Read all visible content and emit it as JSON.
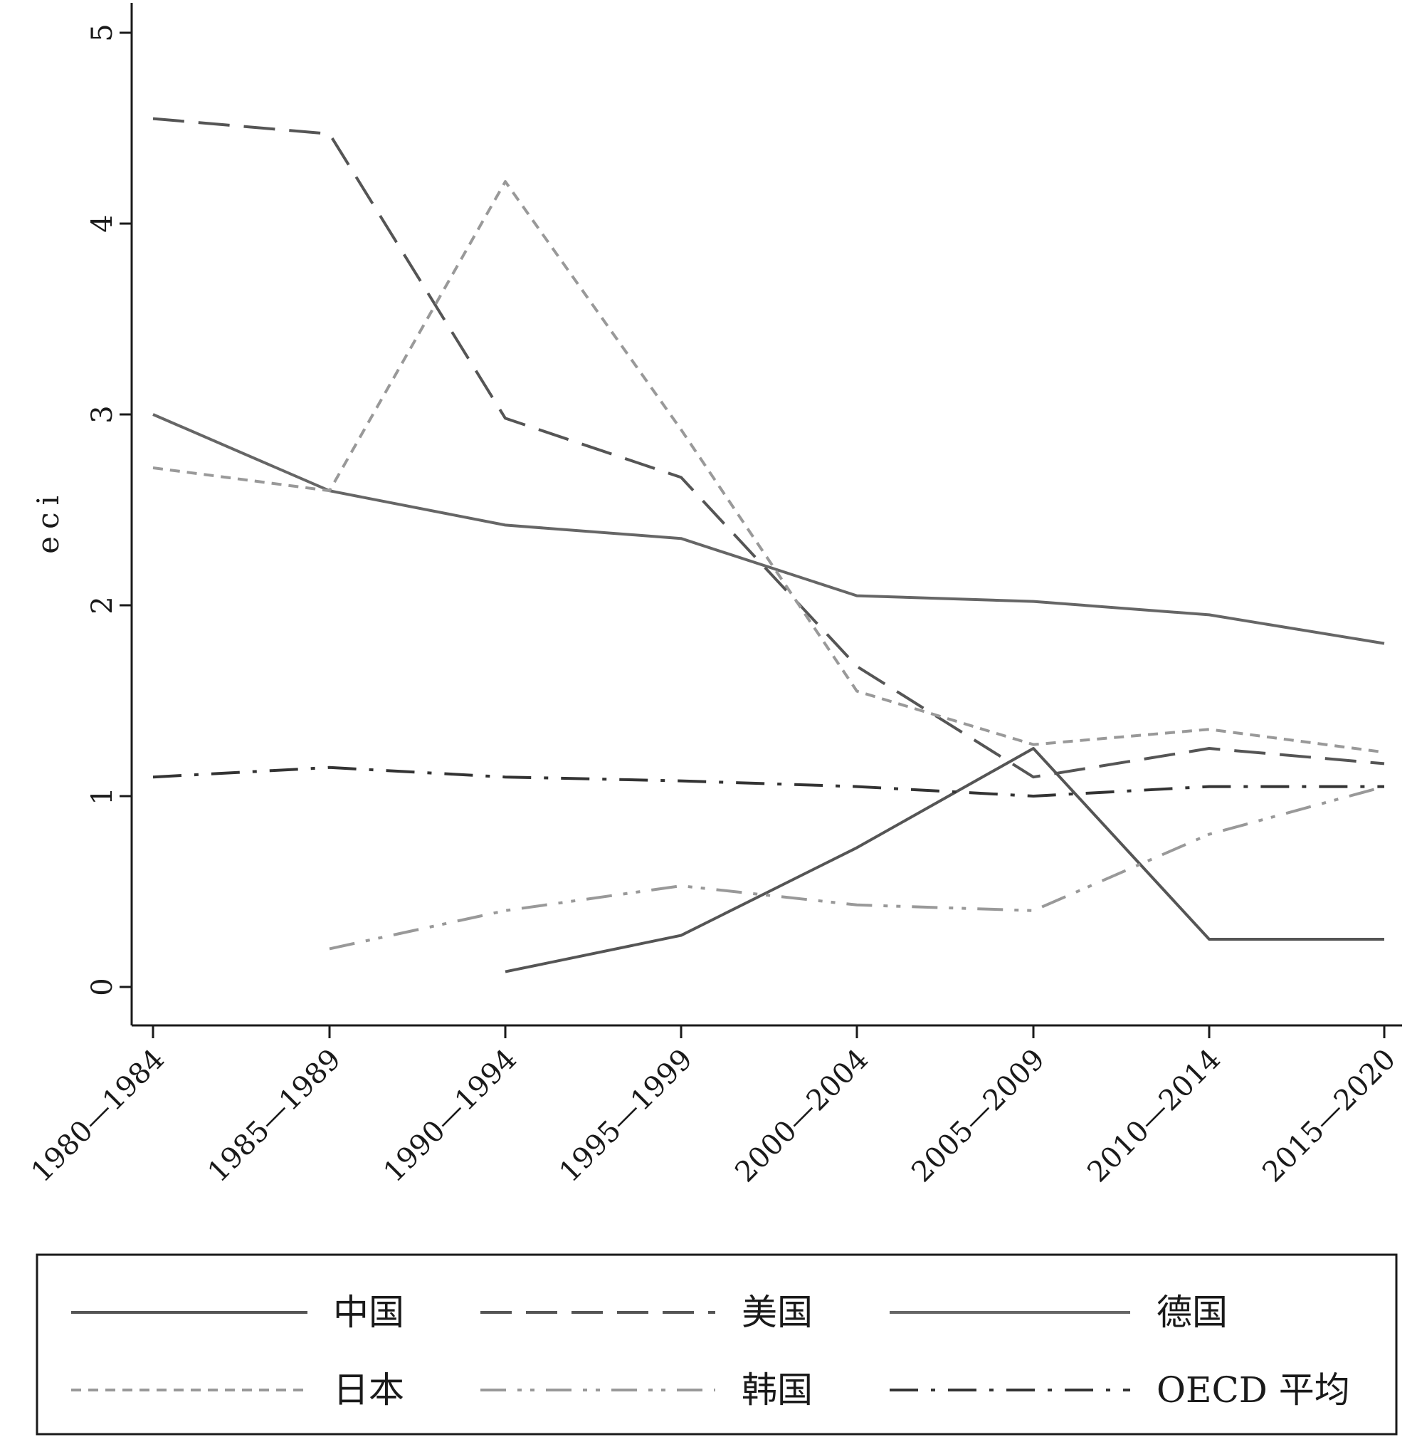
{
  "chart_data": {
    "type": "line",
    "title": "",
    "xlabel": "",
    "ylabel": "eci",
    "ylim": [
      0,
      5
    ],
    "yticks": [
      0,
      1,
      2,
      3,
      4,
      5
    ],
    "categories": [
      "1980—1984",
      "1985—1989",
      "1990—1994",
      "1995—1999",
      "2000—2004",
      "2005—2009",
      "2010—2014",
      "2015—2020"
    ],
    "grid": false,
    "legend_position": "bottom",
    "series": [
      {
        "name": "中国",
        "style": "solid",
        "color": "#555555",
        "values": [
          null,
          null,
          0.08,
          0.27,
          0.73,
          1.25,
          0.25,
          0.25
        ]
      },
      {
        "name": "美国",
        "style": "longdash",
        "color": "#555555",
        "values": [
          4.55,
          4.47,
          2.98,
          2.67,
          1.68,
          1.1,
          1.25,
          1.17
        ]
      },
      {
        "name": "德国",
        "style": "solid",
        "color": "#666666",
        "values": [
          3.0,
          2.6,
          2.42,
          2.35,
          2.05,
          2.02,
          1.95,
          1.8
        ]
      },
      {
        "name": "日本",
        "style": "shortdash",
        "color": "#999999",
        "values": [
          2.72,
          2.6,
          4.22,
          2.92,
          1.55,
          1.27,
          1.35,
          1.23
        ]
      },
      {
        "name": "韩国",
        "style": "dashdotdot",
        "color": "#999999",
        "values": [
          null,
          0.2,
          0.4,
          0.53,
          0.43,
          0.4,
          0.8,
          1.05
        ]
      },
      {
        "name": "OECD 平均",
        "style": "dashdot",
        "color": "#333333",
        "values": [
          1.1,
          1.15,
          1.1,
          1.08,
          1.05,
          1.0,
          1.05,
          1.05
        ]
      }
    ]
  }
}
